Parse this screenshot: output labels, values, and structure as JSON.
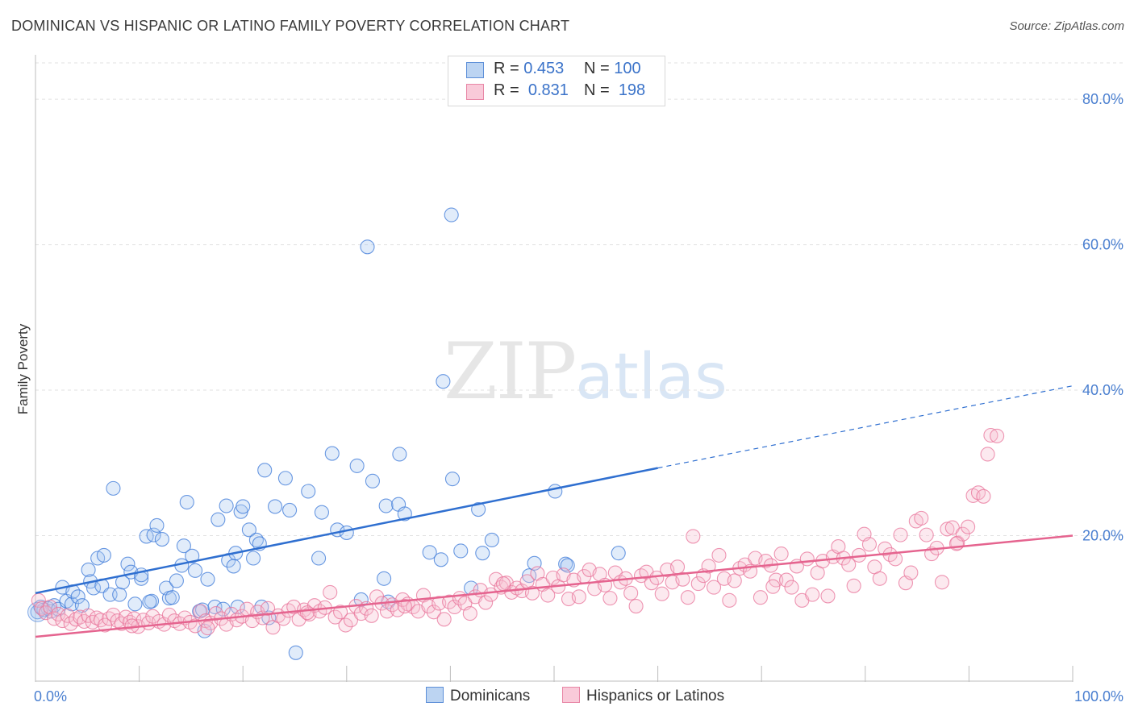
{
  "title": "DOMINICAN VS HISPANIC OR LATINO FAMILY POVERTY CORRELATION CHART",
  "source": "Source: ZipAtlas.com",
  "watermark": {
    "zip": "ZIP",
    "atlas": "atlas"
  },
  "legend": {
    "rows": [
      {
        "r_label": "R =",
        "r_value": "0.453",
        "n_label": "N =",
        "n_value": "100",
        "color": "#8ab4e8"
      },
      {
        "r_label": "R =",
        "r_value": "0.831",
        "n_label": "N =",
        "n_value": "198",
        "color": "#f4a7bf"
      }
    ]
  },
  "bottom_legend": [
    {
      "label": "Dominicans",
      "color": "#8ab4e8"
    },
    {
      "label": "Hispanics or Latinos",
      "color": "#f4a7bf"
    }
  ],
  "chart_data": {
    "type": "scatter",
    "title": "DOMINICAN VS HISPANIC OR LATINO FAMILY POVERTY CORRELATION CHART",
    "xlabel": "",
    "ylabel": "Family Poverty",
    "xlim": [
      0,
      100
    ],
    "ylim": [
      0,
      85
    ],
    "x_tick_labels": [
      "0.0%",
      "100.0%"
    ],
    "y_ticks": [
      20,
      40,
      60,
      80
    ],
    "y_tick_labels": [
      "20.0%",
      "40.0%",
      "60.0%",
      "80.0%"
    ],
    "series": [
      {
        "name": "Dominicans",
        "color": "#3b78d8",
        "fill": "#a9c8f0",
        "trend": {
          "x0": 0,
          "y0": 12.1,
          "x1": 60,
          "y1": 29.3,
          "dash_to_x": 100,
          "dash_to_y": 40.6
        },
        "points": [
          [
            0.2,
            9.5
          ],
          [
            0.5,
            10.2
          ],
          [
            0.8,
            9.8
          ],
          [
            1.2,
            10.0
          ],
          [
            1.5,
            9.6
          ],
          [
            1.8,
            10.4
          ],
          [
            2.2,
            9.9
          ],
          [
            2.6,
            12.9
          ],
          [
            3.0,
            11.0
          ],
          [
            3.5,
            10.6
          ],
          [
            3.6,
            12.3
          ],
          [
            4.1,
            11.6
          ],
          [
            4.5,
            10.4
          ],
          [
            5.1,
            15.3
          ],
          [
            5.3,
            13.7
          ],
          [
            5.6,
            12.8
          ],
          [
            6.0,
            16.9
          ],
          [
            6.4,
            13.1
          ],
          [
            6.6,
            17.3
          ],
          [
            7.2,
            11.9
          ],
          [
            7.5,
            26.5
          ],
          [
            8.1,
            11.9
          ],
          [
            8.4,
            13.6
          ],
          [
            8.9,
            16.1
          ],
          [
            9.2,
            15.0
          ],
          [
            9.6,
            10.6
          ],
          [
            10.2,
            14.1
          ],
          [
            10.2,
            14.6
          ],
          [
            10.7,
            19.9
          ],
          [
            11.2,
            11.0
          ],
          [
            11.4,
            20.1
          ],
          [
            11.7,
            21.4
          ],
          [
            12.2,
            19.5
          ],
          [
            12.6,
            12.8
          ],
          [
            12.9,
            11.4
          ],
          [
            13.2,
            11.5
          ],
          [
            13.6,
            13.8
          ],
          [
            14.1,
            15.9
          ],
          [
            14.3,
            18.6
          ],
          [
            14.6,
            24.6
          ],
          [
            15.1,
            17.2
          ],
          [
            15.4,
            15.2
          ],
          [
            15.8,
            9.6
          ],
          [
            16.1,
            9.8
          ],
          [
            16.3,
            6.9
          ],
          [
            16.6,
            14.0
          ],
          [
            17.3,
            10.2
          ],
          [
            17.6,
            22.2
          ],
          [
            18.1,
            9.9
          ],
          [
            18.4,
            24.1
          ],
          [
            18.6,
            16.6
          ],
          [
            19.1,
            15.8
          ],
          [
            19.3,
            17.6
          ],
          [
            19.5,
            10.2
          ],
          [
            19.8,
            23.3
          ],
          [
            20.0,
            24.0
          ],
          [
            20.6,
            20.8
          ],
          [
            21.0,
            16.9
          ],
          [
            21.3,
            19.4
          ],
          [
            21.6,
            18.9
          ],
          [
            22.1,
            29.0
          ],
          [
            22.5,
            8.7
          ],
          [
            23.1,
            24.0
          ],
          [
            24.1,
            27.9
          ],
          [
            24.5,
            23.5
          ],
          [
            25.1,
            3.9
          ],
          [
            26.3,
            26.1
          ],
          [
            27.3,
            16.9
          ],
          [
            27.6,
            23.2
          ],
          [
            28.6,
            31.3
          ],
          [
            29.1,
            20.8
          ],
          [
            30.0,
            20.4
          ],
          [
            31.0,
            29.6
          ],
          [
            31.4,
            11.2
          ],
          [
            32.0,
            59.7
          ],
          [
            32.5,
            27.5
          ],
          [
            33.6,
            14.1
          ],
          [
            33.8,
            24.1
          ],
          [
            35.0,
            24.3
          ],
          [
            35.1,
            31.2
          ],
          [
            35.6,
            23.0
          ],
          [
            38.0,
            17.7
          ],
          [
            39.1,
            16.7
          ],
          [
            39.3,
            41.2
          ],
          [
            40.1,
            64.1
          ],
          [
            40.2,
            27.8
          ],
          [
            41.0,
            17.9
          ],
          [
            42.0,
            12.8
          ],
          [
            42.7,
            23.6
          ],
          [
            43.1,
            17.6
          ],
          [
            44.0,
            19.4
          ],
          [
            47.6,
            14.5
          ],
          [
            48.1,
            16.2
          ],
          [
            50.1,
            26.1
          ],
          [
            51.1,
            16.1
          ],
          [
            51.3,
            15.9
          ],
          [
            56.2,
            17.6
          ],
          [
            34.0,
            10.9
          ],
          [
            21.8,
            10.2
          ],
          [
            11.0,
            10.9
          ]
        ]
      },
      {
        "name": "Hispanics or Latinos",
        "color": "#e8739a",
        "fill": "#f7bfd0",
        "trend": {
          "x0": 0,
          "y0": 6.1,
          "x1": 100,
          "y1": 20.0
        },
        "points": [
          [
            0.3,
            11.1
          ],
          [
            0.6,
            10.0
          ],
          [
            1.0,
            9.4
          ],
          [
            1.4,
            10.2
          ],
          [
            1.8,
            8.6
          ],
          [
            2.2,
            9.2
          ],
          [
            2.6,
            8.3
          ],
          [
            3.1,
            9.0
          ],
          [
            3.4,
            7.9
          ],
          [
            3.9,
            8.5
          ],
          [
            4.3,
            8.8
          ],
          [
            4.7,
            8.2
          ],
          [
            5.1,
            9.0
          ],
          [
            5.5,
            8.1
          ],
          [
            5.9,
            8.7
          ],
          [
            6.3,
            8.4
          ],
          [
            6.7,
            7.7
          ],
          [
            7.1,
            8.6
          ],
          [
            7.5,
            9.1
          ],
          [
            7.9,
            8.3
          ],
          [
            8.3,
            7.9
          ],
          [
            8.7,
            8.8
          ],
          [
            9.1,
            8.1
          ],
          [
            9.5,
            8.6
          ],
          [
            9.9,
            7.5
          ],
          [
            10.4,
            8.4
          ],
          [
            10.9,
            8.0
          ],
          [
            11.3,
            8.9
          ],
          [
            11.9,
            8.2
          ],
          [
            12.4,
            7.8
          ],
          [
            12.9,
            9.1
          ],
          [
            13.4,
            8.3
          ],
          [
            13.9,
            7.9
          ],
          [
            14.4,
            8.7
          ],
          [
            14.9,
            8.1
          ],
          [
            15.4,
            7.6
          ],
          [
            15.9,
            9.6
          ],
          [
            16.4,
            8.3
          ],
          [
            16.9,
            8.0
          ],
          [
            17.4,
            9.3
          ],
          [
            17.9,
            8.6
          ],
          [
            18.4,
            7.8
          ],
          [
            18.9,
            9.2
          ],
          [
            19.4,
            8.4
          ],
          [
            19.9,
            8.9
          ],
          [
            20.4,
            9.9
          ],
          [
            20.9,
            8.3
          ],
          [
            21.4,
            9.5
          ],
          [
            21.9,
            8.7
          ],
          [
            22.4,
            10.0
          ],
          [
            22.9,
            7.4
          ],
          [
            23.4,
            9.0
          ],
          [
            23.9,
            8.6
          ],
          [
            24.4,
            9.7
          ],
          [
            24.9,
            10.2
          ],
          [
            25.4,
            8.5
          ],
          [
            25.9,
            9.8
          ],
          [
            26.4,
            9.2
          ],
          [
            26.9,
            10.4
          ],
          [
            27.4,
            9.6
          ],
          [
            27.9,
            10.1
          ],
          [
            28.4,
            12.2
          ],
          [
            28.9,
            8.8
          ],
          [
            29.4,
            9.5
          ],
          [
            29.9,
            7.7
          ],
          [
            30.4,
            8.4
          ],
          [
            30.9,
            10.3
          ],
          [
            31.4,
            9.3
          ],
          [
            31.9,
            10.0
          ],
          [
            32.4,
            9.0
          ],
          [
            32.9,
            11.6
          ],
          [
            33.4,
            10.7
          ],
          [
            33.9,
            9.6
          ],
          [
            34.4,
            10.5
          ],
          [
            34.9,
            9.8
          ],
          [
            35.4,
            11.2
          ],
          [
            35.9,
            10.6
          ],
          [
            36.4,
            10.2
          ],
          [
            36.9,
            9.6
          ],
          [
            37.4,
            11.8
          ],
          [
            37.9,
            10.3
          ],
          [
            38.4,
            9.5
          ],
          [
            38.9,
            10.7
          ],
          [
            39.4,
            8.5
          ],
          [
            39.9,
            10.9
          ],
          [
            40.4,
            10.2
          ],
          [
            40.9,
            11.4
          ],
          [
            41.4,
            10.7
          ],
          [
            41.9,
            9.3
          ],
          [
            42.4,
            11.6
          ],
          [
            42.9,
            12.5
          ],
          [
            43.4,
            10.8
          ],
          [
            43.9,
            11.9
          ],
          [
            44.4,
            14.0
          ],
          [
            44.9,
            12.9
          ],
          [
            45.4,
            13.5
          ],
          [
            45.9,
            12.2
          ],
          [
            46.4,
            12.8
          ],
          [
            46.9,
            12.4
          ],
          [
            47.4,
            13.7
          ],
          [
            47.9,
            12.1
          ],
          [
            48.4,
            14.8
          ],
          [
            48.9,
            13.3
          ],
          [
            49.4,
            11.8
          ],
          [
            49.9,
            14.2
          ],
          [
            50.4,
            13.0
          ],
          [
            50.9,
            14.6
          ],
          [
            51.4,
            11.3
          ],
          [
            51.9,
            13.9
          ],
          [
            52.4,
            11.6
          ],
          [
            52.9,
            14.4
          ],
          [
            53.4,
            15.3
          ],
          [
            53.9,
            12.7
          ],
          [
            54.4,
            14.7
          ],
          [
            54.9,
            13.2
          ],
          [
            55.4,
            11.4
          ],
          [
            55.9,
            14.9
          ],
          [
            56.4,
            13.6
          ],
          [
            56.9,
            14.1
          ],
          [
            57.4,
            12.1
          ],
          [
            57.9,
            10.3
          ],
          [
            58.4,
            14.5
          ],
          [
            58.9,
            15.0
          ],
          [
            59.4,
            13.5
          ],
          [
            59.9,
            14.2
          ],
          [
            60.4,
            12.0
          ],
          [
            60.9,
            15.3
          ],
          [
            61.4,
            13.6
          ],
          [
            61.9,
            15.7
          ],
          [
            62.4,
            14.0
          ],
          [
            62.9,
            11.5
          ],
          [
            63.4,
            19.9
          ],
          [
            63.9,
            13.4
          ],
          [
            64.4,
            14.5
          ],
          [
            64.9,
            15.8
          ],
          [
            65.4,
            12.9
          ],
          [
            65.9,
            17.3
          ],
          [
            66.4,
            14.1
          ],
          [
            66.9,
            11.1
          ],
          [
            67.4,
            13.8
          ],
          [
            67.9,
            15.5
          ],
          [
            68.4,
            16.0
          ],
          [
            68.9,
            15.1
          ],
          [
            69.4,
            16.9
          ],
          [
            69.9,
            11.5
          ],
          [
            70.4,
            16.5
          ],
          [
            70.9,
            15.9
          ],
          [
            71.4,
            13.9
          ],
          [
            71.9,
            17.5
          ],
          [
            72.4,
            13.9
          ],
          [
            72.9,
            12.9
          ],
          [
            73.4,
            15.8
          ],
          [
            73.9,
            11.1
          ],
          [
            74.4,
            16.8
          ],
          [
            74.9,
            11.9
          ],
          [
            75.4,
            14.9
          ],
          [
            75.9,
            16.5
          ],
          [
            76.4,
            11.7
          ],
          [
            76.9,
            17.1
          ],
          [
            77.4,
            18.5
          ],
          [
            77.9,
            16.9
          ],
          [
            78.4,
            16.0
          ],
          [
            78.9,
            13.1
          ],
          [
            79.4,
            17.3
          ],
          [
            79.9,
            20.2
          ],
          [
            80.4,
            18.8
          ],
          [
            80.9,
            15.7
          ],
          [
            81.4,
            14.1
          ],
          [
            81.9,
            18.2
          ],
          [
            82.4,
            17.4
          ],
          [
            82.9,
            16.8
          ],
          [
            83.4,
            20.1
          ],
          [
            83.9,
            13.5
          ],
          [
            84.4,
            14.9
          ],
          [
            84.9,
            22.0
          ],
          [
            85.4,
            22.4
          ],
          [
            85.9,
            20.1
          ],
          [
            86.4,
            17.5
          ],
          [
            86.9,
            18.3
          ],
          [
            87.4,
            13.6
          ],
          [
            87.9,
            20.9
          ],
          [
            88.4,
            21.1
          ],
          [
            88.9,
            19.0
          ],
          [
            89.4,
            20.2
          ],
          [
            89.9,
            21.2
          ],
          [
            90.4,
            25.5
          ],
          [
            90.9,
            25.9
          ],
          [
            91.4,
            25.4
          ],
          [
            91.8,
            31.2
          ],
          [
            92.1,
            33.8
          ],
          [
            92.7,
            33.7
          ],
          [
            88.8,
            18.9
          ],
          [
            71.1,
            13.0
          ],
          [
            45.1,
            13.4
          ],
          [
            35.6,
            10.3
          ],
          [
            16.6,
            7.3
          ],
          [
            9.3,
            7.6
          ],
          [
            26.2,
            9.4
          ]
        ]
      }
    ]
  }
}
